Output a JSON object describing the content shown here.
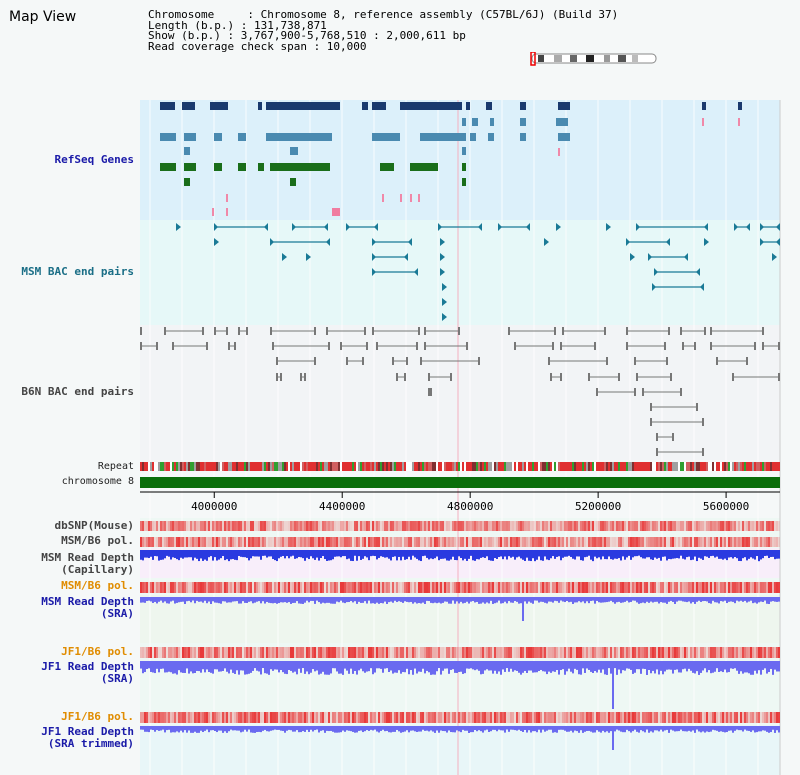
{
  "header": {
    "title": "Map View",
    "lines": [
      "Chromosome     : Chromosome 8, reference assembly (C57BL/6J) (Build 37)",
      "Length (b.p.) : 131,738,871",
      "Show (b.p.) : 3,767,900-5,768,510 : 2,000,611 bp",
      "Read coverage check span : 10,000"
    ]
  },
  "tracks": {
    "refseq": "RefSeq Genes",
    "msm_bac": "MSM BAC end pairs",
    "b6n_bac": "B6N BAC end pairs",
    "repeat": "Repeat",
    "chromosome": "chromosome 8",
    "dbsnp": "dbSNP(Mouse)",
    "msm_b6_pol_1": "MSM/B6 pol.",
    "msm_read_depth_cap": "MSM Read Depth\n(Capillary)",
    "msm_b6_pol_2": "MSM/B6 pol.",
    "msm_read_depth_sra": "MSM Read Depth\n(SRA)",
    "jf1_b6_pol_1": "JF1/B6 pol.",
    "jf1_read_depth_sra": "JF1 Read Depth\n(SRA)",
    "jf1_b6_pol_2": "JF1/B6 pol.",
    "jf1_read_depth_trim": "JF1 Read Depth\n(SRA trimmed)"
  },
  "axis": {
    "ticks": [
      "4000000",
      "4400000",
      "4800000",
      "5200000",
      "5600000"
    ],
    "tick_values": [
      4000000,
      4400000,
      4800000,
      5200000,
      5600000
    ],
    "range_start": 3767900,
    "range_end": 5768510
  },
  "colors": {
    "refseq_bg": "#dcf0fa",
    "msm_bg": "#e6f8f8",
    "b6n_bg": "#f2f4f6",
    "gene_dark": "#1a3a6e",
    "gene_mid": "#4a8ab0",
    "gene_green": "#1a6e1a",
    "bac_teal": "#1a7a96",
    "bac_gray": "#777777",
    "chrom_green": "#0a6e0a",
    "depth_blue": "#2a3ae0",
    "depth_sra": "#6a6af0",
    "pol_red": "#e83a3a"
  }
}
